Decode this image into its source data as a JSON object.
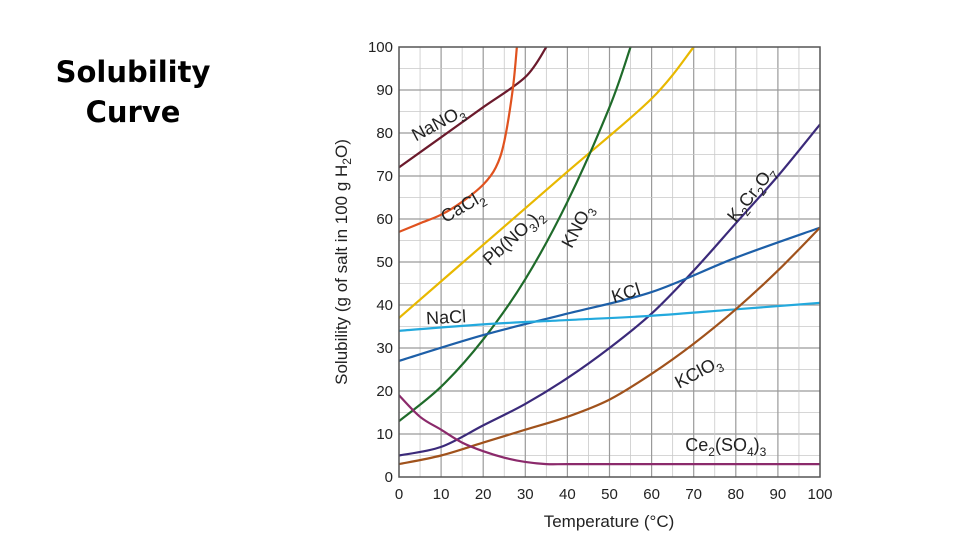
{
  "slide": {
    "title_line1": "Solubility",
    "title_line2": "Curve"
  },
  "chart_data": {
    "type": "line",
    "title": "",
    "xlabel": "Temperature (°C)",
    "ylabel": "Solubility (g of salt in 100 g H2O)",
    "xlim": [
      0,
      100
    ],
    "ylim": [
      0,
      100
    ],
    "x_ticks": [
      0,
      10,
      20,
      30,
      40,
      50,
      60,
      70,
      80,
      90,
      100
    ],
    "y_ticks": [
      0,
      10,
      20,
      30,
      40,
      50,
      60,
      70,
      80,
      90,
      100
    ],
    "grid": true,
    "series": [
      {
        "name": "NaNO3",
        "label_parts": [
          [
            "Na",
            ""
          ],
          [
            "N",
            ""
          ],
          [
            "O",
            ""
          ],
          [
            "3",
            "sub"
          ]
        ],
        "color": "#6b1a2c",
        "x": [
          0,
          10,
          20,
          30,
          35
        ],
        "y": [
          72,
          79,
          86,
          93,
          100
        ]
      },
      {
        "name": "CaCl2",
        "label_parts": [
          [
            "CaCl",
            ""
          ],
          [
            "2",
            "sub"
          ]
        ],
        "color": "#e0521f",
        "x": [
          0,
          5,
          10,
          15,
          20,
          23,
          25,
          27,
          28
        ],
        "y": [
          57,
          59,
          61,
          64,
          68,
          72,
          78,
          90,
          100
        ]
      },
      {
        "name": "Pb(NO3)2",
        "label_parts": [
          [
            "Pb(NO",
            ""
          ],
          [
            "3",
            "sub"
          ],
          [
            ")",
            ""
          ],
          [
            "2",
            "sub"
          ]
        ],
        "color": "#e8b800",
        "x": [
          0,
          20,
          40,
          60,
          70
        ],
        "y": [
          37,
          54,
          71,
          88,
          100
        ]
      },
      {
        "name": "KNO3",
        "label_parts": [
          [
            "KNO",
            ""
          ],
          [
            "3",
            "sub"
          ]
        ],
        "color": "#1f6b2a",
        "x": [
          0,
          10,
          20,
          30,
          40,
          50,
          55
        ],
        "y": [
          13,
          21,
          32,
          46,
          64,
          86,
          100
        ]
      },
      {
        "name": "K2Cr2O7",
        "label_parts": [
          [
            "K",
            ""
          ],
          [
            "2",
            "sub"
          ],
          [
            "Cr",
            ""
          ],
          [
            "2",
            "sub"
          ],
          [
            "O",
            ""
          ],
          [
            "7",
            "sub"
          ]
        ],
        "color": "#3b2a7a",
        "x": [
          0,
          10,
          20,
          30,
          40,
          50,
          60,
          70,
          80,
          90,
          100
        ],
        "y": [
          5,
          7,
          12,
          17,
          23,
          30,
          38,
          48,
          59,
          70,
          82
        ]
      },
      {
        "name": "KCl",
        "label_parts": [
          [
            "KCl",
            ""
          ]
        ],
        "color": "#1d5fa8",
        "x": [
          0,
          20,
          40,
          60,
          80,
          100
        ],
        "y": [
          27,
          33,
          38,
          43,
          51,
          58
        ]
      },
      {
        "name": "NaCl",
        "label_parts": [
          [
            "NaCl",
            ""
          ]
        ],
        "color": "#23a9dd",
        "x": [
          0,
          20,
          40,
          60,
          80,
          100
        ],
        "y": [
          34,
          35.5,
          36.5,
          37.5,
          39,
          40.5
        ]
      },
      {
        "name": "KClO3",
        "label_parts": [
          [
            "KClO",
            ""
          ],
          [
            "3",
            "sub"
          ]
        ],
        "color": "#a0521c",
        "x": [
          0,
          10,
          20,
          30,
          40,
          50,
          60,
          70,
          80,
          90,
          100
        ],
        "y": [
          3,
          5,
          8,
          11,
          14,
          18,
          24,
          31,
          39,
          48,
          58
        ]
      },
      {
        "name": "Ce2(SO4)3",
        "label_parts": [
          [
            "Ce",
            ""
          ],
          [
            "2",
            "sub"
          ],
          [
            "(SO",
            ""
          ],
          [
            "4",
            "sub"
          ],
          [
            ")",
            ""
          ],
          [
            "3",
            "sub"
          ]
        ],
        "color": "#8b2a6b",
        "x": [
          0,
          5,
          10,
          15,
          20,
          25,
          30,
          35,
          40,
          50,
          60,
          70,
          80,
          90,
          100
        ],
        "y": [
          19,
          14,
          11,
          8,
          6,
          4.5,
          3.5,
          3,
          3,
          3,
          3,
          3,
          3,
          3,
          3
        ]
      }
    ]
  }
}
